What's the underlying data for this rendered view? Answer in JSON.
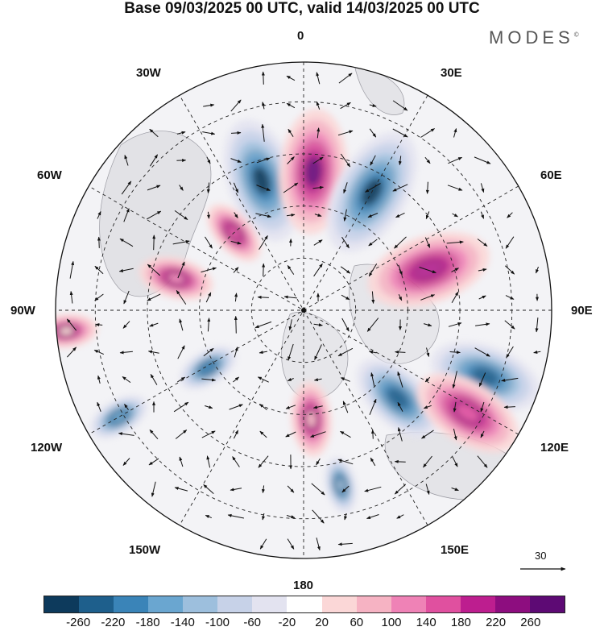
{
  "title": "Base 09/03/2025 00 UTC, valid 14/03/2025 00 UTC",
  "brand": "MODES",
  "brand_mark": "©",
  "longitude_labels": {
    "top": "0",
    "bottom": "180",
    "left": "90W",
    "right": "90E",
    "nw30": "30W",
    "ne30": "30E",
    "nw60": "60W",
    "ne60": "60E",
    "sw120": "120W",
    "se120": "120E",
    "sw150": "150W",
    "se150": "150E"
  },
  "wind_reference": "30",
  "legend": {
    "colors": [
      "#0d3a5c",
      "#1e5f8c",
      "#3a84b8",
      "#6aa6d0",
      "#9dbfdd",
      "#c7d2e8",
      "#e3e3f0",
      "#ffffff",
      "#fbd7d7",
      "#f6b3c3",
      "#ef82b6",
      "#e0509f",
      "#bd1e8f",
      "#8d0d7f",
      "#5d0a74"
    ],
    "tick_labels": [
      "-260",
      "-220",
      "-180",
      "-140",
      "-100",
      "-60",
      "-20",
      "20",
      "60",
      "100",
      "140",
      "180",
      "220",
      "260"
    ]
  },
  "anomaly_centers": [
    {
      "sign": "negative",
      "bearing_deg": -18,
      "radius_frac": 0.55,
      "color": "#0d3a5c",
      "scale": 1.0
    },
    {
      "sign": "positive",
      "bearing_deg": 4,
      "radius_frac": 0.56,
      "color": "#6a0f7a",
      "scale": 1.0
    },
    {
      "sign": "negative",
      "bearing_deg": 30,
      "radius_frac": 0.55,
      "color": "#0d3a5c",
      "scale": 1.05
    },
    {
      "sign": "positive",
      "bearing_deg": 72,
      "radius_frac": 0.53,
      "color": "#b4208f",
      "scale": 1.0
    },
    {
      "sign": "negative",
      "bearing_deg": 110,
      "radius_frac": 0.78,
      "color": "#1e5f8c",
      "scale": 0.9
    },
    {
      "sign": "negative",
      "bearing_deg": 133,
      "radius_frac": 0.52,
      "color": "#1e5f8c",
      "scale": 0.8
    },
    {
      "sign": "positive",
      "bearing_deg": 122,
      "radius_frac": 0.78,
      "color": "#e0509f",
      "scale": 0.9
    },
    {
      "sign": "positive",
      "bearing_deg": -42,
      "radius_frac": 0.42,
      "color": "#e0509f",
      "scale": 0.55
    },
    {
      "sign": "positive",
      "bearing_deg": -76,
      "radius_frac": 0.53,
      "color": "#ef82b6",
      "scale": 0.6
    },
    {
      "sign": "negative",
      "bearing_deg": -121,
      "radius_frac": 0.45,
      "color": "#3a84b8",
      "scale": 0.5
    },
    {
      "sign": "negative",
      "bearing_deg": -120,
      "radius_frac": 0.86,
      "color": "#6aa6d0",
      "scale": 0.5
    },
    {
      "sign": "positive",
      "bearing_deg": 176,
      "radius_frac": 0.44,
      "color": "#f6b3c3",
      "scale": 0.6
    },
    {
      "sign": "negative",
      "bearing_deg": 168,
      "radius_frac": 0.72,
      "color": "#9dbfdd",
      "scale": 0.45
    },
    {
      "sign": "positive",
      "bearing_deg": -95,
      "radius_frac": 0.96,
      "color": "#fbd7d7",
      "scale": 0.5
    }
  ]
}
